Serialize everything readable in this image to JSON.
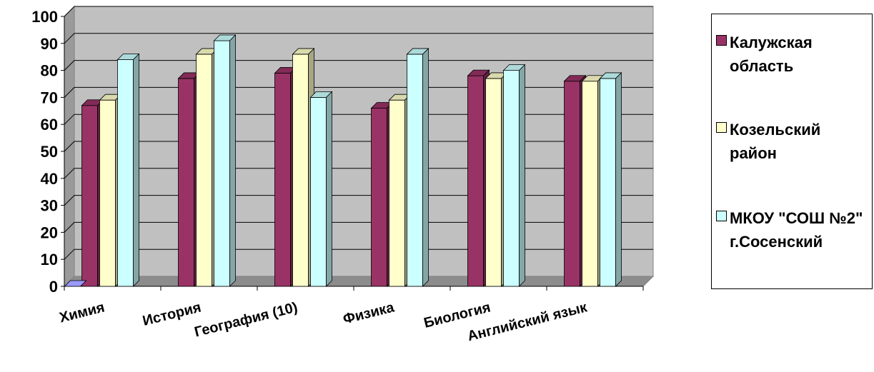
{
  "chart_data": {
    "type": "bar",
    "categories": [
      "Химия",
      "История",
      "География (10)",
      "Физика",
      "Биология",
      "Английский язык"
    ],
    "series": [
      {
        "name": "Калужская область",
        "values": [
          67,
          77,
          79,
          66,
          78,
          76
        ],
        "color": "#993366"
      },
      {
        "name": "Козельский район",
        "values": [
          69,
          86,
          86,
          69,
          77,
          76
        ],
        "color": "#FFFFCC"
      },
      {
        "name": "МКОУ \"СОШ №2\" г.Сосенский",
        "values": [
          84,
          91,
          70,
          86,
          80,
          77
        ],
        "color": "#CCFFFF"
      }
    ],
    "extra_marker": {
      "category": "Химия",
      "value": 0,
      "color": "#9999FF"
    },
    "ylim": [
      0,
      100
    ],
    "yticks": [
      0,
      10,
      20,
      30,
      40,
      50,
      60,
      70,
      80,
      90,
      100
    ],
    "xlabel": "",
    "ylabel": "",
    "grid": true,
    "plot_background": "#C0C0C0",
    "legend_position": "right"
  }
}
